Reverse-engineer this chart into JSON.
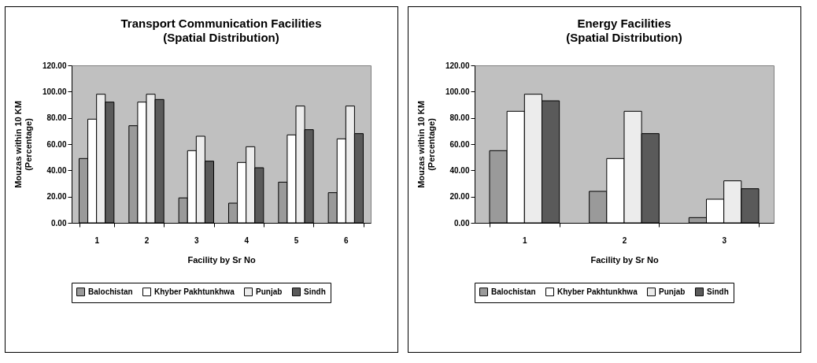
{
  "chart_data": [
    {
      "type": "bar",
      "title": "Transport Communication Facilities",
      "subtitle": "(Spatial Distribution)",
      "xlabel": "Facility by Sr No",
      "ylabel": "Mouzas within 10 KM\n(Percentage)",
      "categories": [
        "1",
        "2",
        "3",
        "4",
        "5",
        "6"
      ],
      "series": [
        {
          "name": "Balochistan",
          "color": "#9a9a9a",
          "values": [
            49,
            74,
            19,
            15,
            31,
            23
          ]
        },
        {
          "name": "Khyber Pakhtunkhwa",
          "color": "#ffffff",
          "values": [
            79,
            92,
            55,
            46,
            67,
            64
          ]
        },
        {
          "name": "Punjab",
          "color": "#ececec",
          "values": [
            98,
            98,
            66,
            58,
            89,
            89
          ]
        },
        {
          "name": "Sindh",
          "color": "#5a5a5a",
          "values": [
            92,
            94,
            47,
            42,
            71,
            68
          ]
        }
      ],
      "ylim": [
        0,
        120
      ],
      "yticks": [
        {
          "value": 0,
          "label": "0.00"
        },
        {
          "value": 20,
          "label": "20.00"
        },
        {
          "value": 40,
          "label": "40.00"
        },
        {
          "value": 60,
          "label": "60.00"
        },
        {
          "value": 80,
          "label": "80.00"
        },
        {
          "value": 100,
          "label": "100.00"
        },
        {
          "value": 120,
          "label": "120.00"
        }
      ],
      "legend": "bottom"
    },
    {
      "type": "bar",
      "title": "Energy Facilities",
      "subtitle": "(Spatial Distribution)",
      "xlabel": "Facility by Sr No",
      "ylabel": "Mouzas within 10 KM\n(Percentage)",
      "categories": [
        "1",
        "2",
        "3"
      ],
      "series": [
        {
          "name": "Balochistan",
          "color": "#9a9a9a",
          "values": [
            55,
            24,
            4
          ]
        },
        {
          "name": "Khyber Pakhtunkhwa",
          "color": "#ffffff",
          "values": [
            85,
            49,
            18
          ]
        },
        {
          "name": "Punjab",
          "color": "#ececec",
          "values": [
            98,
            85,
            32
          ]
        },
        {
          "name": "Sindh",
          "color": "#5a5a5a",
          "values": [
            93,
            68,
            26
          ]
        }
      ],
      "ylim": [
        0,
        120
      ],
      "yticks": [
        {
          "value": 0,
          "label": "0.00"
        },
        {
          "value": 20,
          "label": "20.00"
        },
        {
          "value": 40,
          "label": "40.00"
        },
        {
          "value": 60,
          "label": "60.00"
        },
        {
          "value": 80,
          "label": "80.00"
        },
        {
          "value": 100,
          "label": "100.00"
        },
        {
          "value": 120,
          "label": "120.00"
        }
      ],
      "legend": "bottom"
    }
  ]
}
